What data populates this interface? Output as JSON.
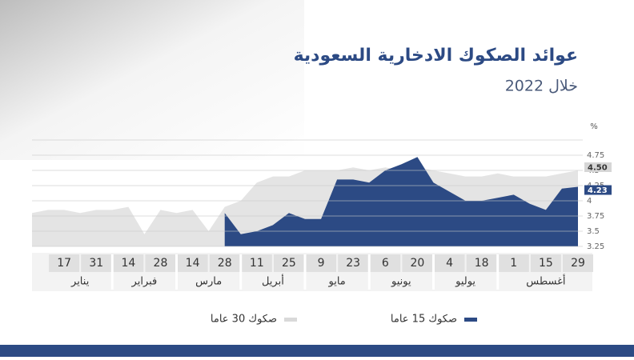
{
  "chart_data": {
    "type": "area",
    "title": "عوائد الصكوك الادخارية السعودية",
    "subtitle": "خلال 2022",
    "y_label": "%",
    "categories": [
      null,
      null,
      "17",
      null,
      "31",
      null,
      "14",
      null,
      "28",
      null,
      "14",
      null,
      "28",
      null,
      "11",
      null,
      "25",
      null,
      "9",
      null,
      "23",
      null,
      "6",
      null,
      "20",
      null,
      "4",
      null,
      "18",
      null,
      "1",
      null,
      "15",
      null,
      "29"
    ],
    "x_groups": [
      "يناير",
      "فبراير",
      "مارس",
      "أبريل",
      "مايو",
      "يونيو",
      "يوليو",
      "أغسطس"
    ],
    "ylim": [
      3.25,
      5.0
    ],
    "yticks": [
      3.25,
      3.5,
      3.75,
      4,
      4.25,
      4.5,
      4.75,
      5.0
    ],
    "yticks_labeled": [
      3.25,
      3.5,
      3.75,
      4,
      4.25,
      4.5,
      4.75
    ],
    "grid": true,
    "series": [
      {
        "name": "صكوك 30 عاما",
        "color": "#e4e4e4",
        "end_label_color": "#d6d6d6",
        "end_value_label": "4.50",
        "values": [
          3.8,
          3.85,
          3.85,
          3.8,
          3.85,
          3.85,
          3.9,
          3.45,
          3.85,
          3.8,
          3.85,
          3.5,
          3.9,
          4.0,
          4.3,
          4.4,
          4.4,
          4.5,
          4.5,
          4.5,
          4.55,
          4.5,
          4.55,
          4.5,
          4.55,
          4.5,
          4.45,
          4.4,
          4.4,
          4.45,
          4.4,
          4.4,
          4.4,
          4.45,
          4.5
        ]
      },
      {
        "name": "صكوك 15 عاما",
        "color": "#2c4a84",
        "end_label_color": "#2c4a84",
        "end_value_label": "4.23",
        "values": [
          null,
          null,
          null,
          null,
          null,
          null,
          null,
          null,
          null,
          null,
          null,
          null,
          3.8,
          3.45,
          3.5,
          3.6,
          3.8,
          3.7,
          3.7,
          4.35,
          4.35,
          4.3,
          4.5,
          4.6,
          4.72,
          4.3,
          4.15,
          4.0,
          4.0,
          4.05,
          4.1,
          3.95,
          3.85,
          4.2,
          4.23
        ]
      }
    ],
    "legend": "bottom"
  }
}
